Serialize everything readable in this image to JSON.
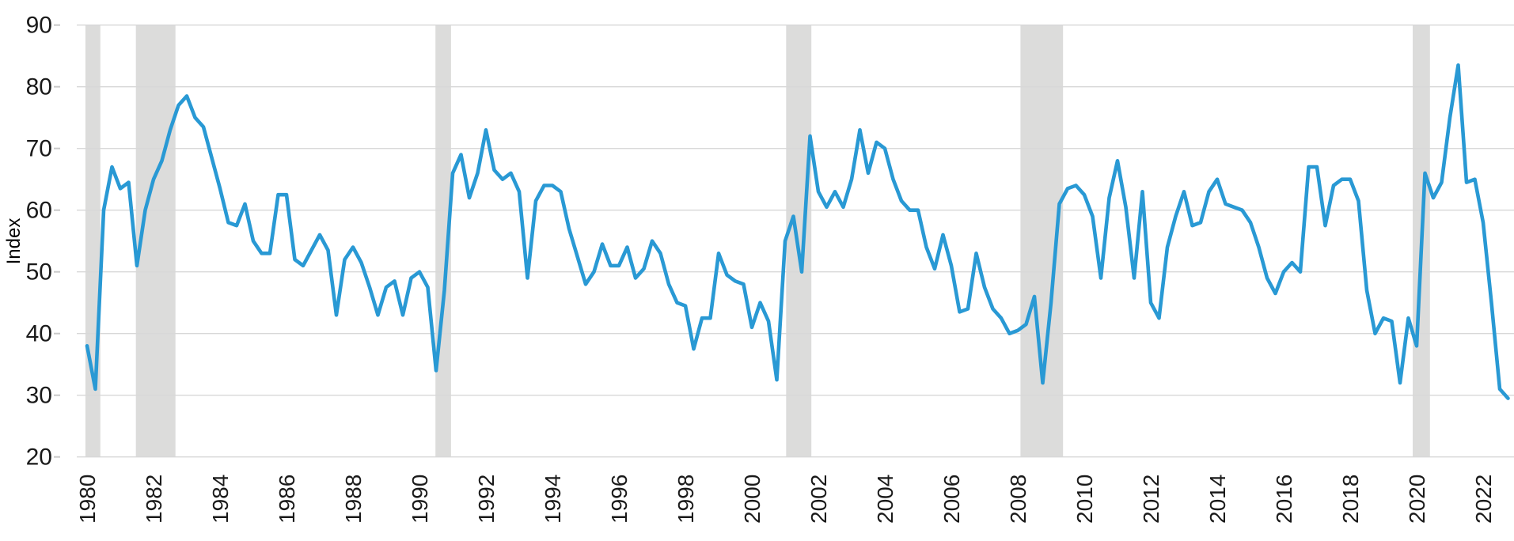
{
  "chart_data": {
    "type": "line",
    "title": "",
    "ylabel": "Index",
    "series": [
      {
        "name": "Index",
        "x_start": 1980.0,
        "x_step_years": 0.25,
        "values": [
          38,
          31,
          60,
          67,
          63.5,
          64.5,
          51,
          60,
          65,
          68,
          73,
          77,
          78.5,
          75,
          73.5,
          68.5,
          63.5,
          58,
          57.5,
          61,
          55,
          53,
          53,
          62.5,
          62.5,
          52,
          51,
          53.5,
          56,
          53.5,
          43,
          52,
          54,
          51.5,
          47.5,
          43,
          47.5,
          48.5,
          43,
          49,
          50,
          47.5,
          34,
          47,
          66,
          69,
          62,
          66,
          73,
          66.5,
          65,
          66,
          63,
          49,
          61.5,
          64,
          64,
          63,
          57,
          52.5,
          48,
          50,
          54.5,
          51,
          51,
          54,
          49,
          50.5,
          55,
          53,
          48,
          45,
          44.5,
          37.5,
          42.5,
          42.5,
          53,
          49.5,
          48.5,
          48,
          41,
          45,
          42,
          32.5,
          55,
          59,
          50,
          72,
          63,
          60.5,
          63,
          60.5,
          65,
          73,
          66,
          71,
          70,
          65,
          61.5,
          60,
          60,
          54,
          50.5,
          56,
          51,
          43.5,
          44,
          53,
          47.5,
          44,
          42.5,
          40,
          40.5,
          41.5,
          46,
          32,
          45,
          61,
          63.5,
          64,
          62.5,
          59,
          49,
          62,
          68,
          60.5,
          49,
          63,
          45,
          42.5,
          54,
          59,
          63,
          57.5,
          58,
          63,
          65,
          61,
          60.5,
          60,
          58,
          54,
          49,
          46.5,
          50,
          51.5,
          50,
          67,
          67,
          57.5,
          64,
          65,
          65,
          61.5,
          47,
          40,
          42.5,
          42,
          32,
          42.5,
          38,
          66,
          62,
          64.5,
          75,
          83.5,
          64.5,
          65,
          58,
          45,
          31,
          29.5
        ]
      }
    ],
    "ylim": [
      20,
      90
    ],
    "y_ticks": [
      90,
      80,
      70,
      60,
      50,
      40,
      30,
      20
    ],
    "x_ticks": [
      1980,
      1982,
      1984,
      1986,
      1988,
      1990,
      1992,
      1994,
      1996,
      1998,
      2000,
      2002,
      2004,
      2006,
      2008,
      2010,
      2012,
      2014,
      2016,
      2018,
      2020,
      2022
    ],
    "grid": "horizontal",
    "legend_position": "none",
    "recession_bands": [
      [
        1979.95,
        1980.4
      ],
      [
        1981.47,
        1982.66
      ],
      [
        1990.48,
        1990.95
      ],
      [
        2001.03,
        2001.79
      ],
      [
        2008.08,
        2009.36
      ],
      [
        2019.88,
        2020.4
      ]
    ],
    "colors": {
      "line": "#2999d4",
      "recession_band": "#dcdcdb",
      "gridline": "#d8d8d8",
      "tick_mark": "#c9c9c9",
      "text": "#1a1a1a",
      "background": "#ffffff"
    }
  }
}
